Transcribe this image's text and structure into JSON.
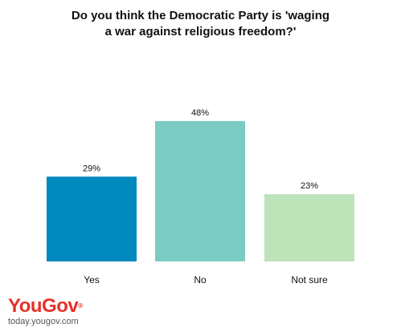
{
  "chart_data": {
    "type": "bar",
    "title_lines": [
      "Do you think the Democratic Party is 'waging",
      "a war against religious freedom?'"
    ],
    "categories": [
      "Yes",
      "No",
      "Not sure"
    ],
    "values": [
      29,
      48,
      23
    ],
    "data_labels": [
      "29%",
      "48%",
      "23%"
    ],
    "colors": [
      "#0089bd",
      "#7accc3",
      "#bde3b8"
    ],
    "ylim": [
      0,
      48
    ],
    "grid": false,
    "legend": "none"
  },
  "branding": {
    "logo_you": "You",
    "logo_gov": "Gov",
    "url": "today.yougov.com"
  }
}
